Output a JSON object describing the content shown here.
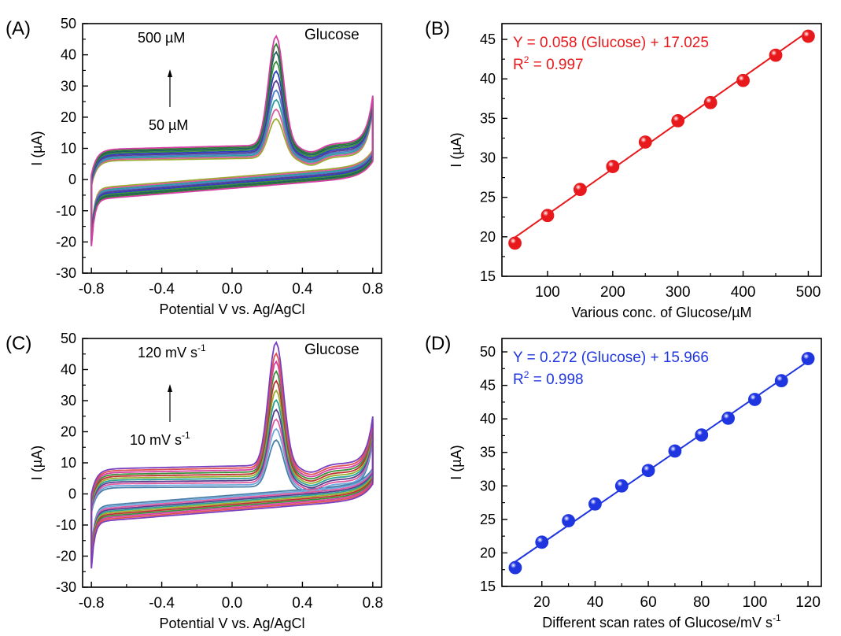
{
  "chart_data": [
    {
      "panel_label": "(A)",
      "type": "line",
      "xlabel": "Potential V vs. Ag/AgCl",
      "ylabel": "I (µA)",
      "xlim": [
        -0.85,
        0.85
      ],
      "ylim": [
        -30,
        50
      ],
      "xticks": [
        "-0.8",
        "-0.4",
        "0.0",
        "0.4",
        "0.8"
      ],
      "xtick_values": [
        -0.8,
        -0.4,
        0.0,
        0.4,
        0.8
      ],
      "yticks": [
        "-30",
        "-20",
        "-10",
        "0",
        "10",
        "20",
        "30",
        "40",
        "50"
      ],
      "ytick_values": [
        -30,
        -20,
        -10,
        0,
        10,
        20,
        30,
        40,
        50
      ],
      "annotations": {
        "top": "500 µM",
        "bottom": "50 µM",
        "label": "Glucose"
      },
      "series": [
        {
          "color": "#9aae2e",
          "peak": 19.5,
          "upper": 6.0,
          "lower": -2.8
        },
        {
          "color": "#e05aa0",
          "peak": 22.5,
          "upper": 6.4,
          "lower": -3.2
        },
        {
          "color": "#2aa198",
          "peak": 25.5,
          "upper": 6.8,
          "lower": -3.6
        },
        {
          "color": "#4a7fc9",
          "peak": 28.5,
          "upper": 7.2,
          "lower": -4.0
        },
        {
          "color": "#5a3d8f",
          "peak": 31.5,
          "upper": 7.6,
          "lower": -4.4
        },
        {
          "color": "#2f3fbf",
          "peak": 34.5,
          "upper": 8.0,
          "lower": -4.8
        },
        {
          "color": "#3a8f3a",
          "peak": 37.5,
          "upper": 8.4,
          "lower": -5.2
        },
        {
          "color": "#1f5f5f",
          "peak": 40.5,
          "upper": 8.8,
          "lower": -5.6
        },
        {
          "color": "#2e7d32",
          "peak": 43.0,
          "upper": 9.2,
          "lower": -6.0
        },
        {
          "color": "#d63fa6",
          "peak": 45.5,
          "upper": 9.6,
          "lower": -6.4
        }
      ]
    },
    {
      "panel_label": "(B)",
      "type": "scatter",
      "xlabel": "Various conc. of Glucose/µM",
      "ylabel": "I (µA)",
      "xlim": [
        30,
        520
      ],
      "ylim": [
        15,
        47
      ],
      "xticks": [
        "100",
        "200",
        "300",
        "400",
        "500"
      ],
      "xtick_values": [
        100,
        200,
        300,
        400,
        500
      ],
      "yticks": [
        "15",
        "20",
        "25",
        "30",
        "35",
        "40",
        "45"
      ],
      "ytick_values": [
        15,
        20,
        25,
        30,
        35,
        40,
        45
      ],
      "equation": "Y = 0.058 (Glucose) + 17.025",
      "r2_label": "R",
      "r2_sup": "2",
      "r2_value": " = 0.997",
      "color": "#e8191c",
      "x": [
        50,
        100,
        150,
        200,
        250,
        300,
        350,
        400,
        450,
        500
      ],
      "y": [
        19.2,
        22.7,
        26.0,
        28.9,
        32.0,
        34.7,
        37.0,
        39.8,
        43.0,
        45.4
      ],
      "fit": {
        "slope": 0.058,
        "intercept": 17.025
      }
    },
    {
      "panel_label": "(C)",
      "type": "line",
      "xlabel": "Potential V vs. Ag/AgCl",
      "ylabel": "I (µA)",
      "xlim": [
        -0.85,
        0.85
      ],
      "ylim": [
        -30,
        50
      ],
      "xticks": [
        "-0.8",
        "-0.4",
        "0.0",
        "0.4",
        "0.8"
      ],
      "xtick_values": [
        -0.8,
        -0.4,
        0.0,
        0.4,
        0.8
      ],
      "yticks": [
        "-30",
        "-20",
        "-10",
        "0",
        "10",
        "20",
        "30",
        "40",
        "50"
      ],
      "ytick_values": [
        -30,
        -20,
        -10,
        0,
        10,
        20,
        30,
        40,
        50
      ],
      "annotations": {
        "top": "120 mV s",
        "top_sup": "-1",
        "bottom": "10 mV s",
        "bottom_sup": "-1",
        "label": "Glucose"
      },
      "series": [
        {
          "color": "#4a7fa8",
          "peak": 18.0,
          "upper": 2.0,
          "lower": -4.0
        },
        {
          "color": "#6fa8dc",
          "peak": 21.5,
          "upper": 2.6,
          "lower": -4.5
        },
        {
          "color": "#e05aa0",
          "peak": 24.5,
          "upper": 3.2,
          "lower": -5.0
        },
        {
          "color": "#5a3d8f",
          "peak": 27.5,
          "upper": 3.8,
          "lower": -5.5
        },
        {
          "color": "#2aa198",
          "peak": 30.5,
          "upper": 4.4,
          "lower": -6.0
        },
        {
          "color": "#9aae2e",
          "peak": 33.5,
          "upper": 5.0,
          "lower": -6.5
        },
        {
          "color": "#c03030",
          "peak": 36.5,
          "upper": 5.6,
          "lower": -7.0
        },
        {
          "color": "#3a8f3a",
          "peak": 39.5,
          "upper": 6.2,
          "lower": -7.5
        },
        {
          "color": "#d63fa6",
          "peak": 42.5,
          "upper": 6.8,
          "lower": -8.0
        },
        {
          "color": "#e05050",
          "peak": 45.0,
          "upper": 7.4,
          "lower": -8.5
        },
        {
          "color": "#7a3fbf",
          "peak": 48.5,
          "upper": 8.0,
          "lower": -9.0
        }
      ]
    },
    {
      "panel_label": "(D)",
      "type": "scatter",
      "xlabel": "Different scan rates of Glucose/mV s",
      "xlabel_sup": "-1",
      "ylabel": "I (µA)",
      "xlim": [
        5,
        125
      ],
      "ylim": [
        15,
        52
      ],
      "xticks": [
        "20",
        "40",
        "60",
        "80",
        "100",
        "120"
      ],
      "xtick_values": [
        20,
        40,
        60,
        80,
        100,
        120
      ],
      "yticks": [
        "15",
        "20",
        "25",
        "30",
        "35",
        "40",
        "45",
        "50"
      ],
      "ytick_values": [
        15,
        20,
        25,
        30,
        35,
        40,
        45,
        50
      ],
      "equation": "Y = 0.272 (Glucose) + 15.966",
      "r2_label": "R",
      "r2_sup": "2",
      "r2_value": " = 0.998",
      "color": "#1f35e0",
      "x": [
        10,
        20,
        30,
        40,
        50,
        60,
        70,
        80,
        90,
        100,
        110,
        120
      ],
      "y": [
        17.8,
        21.6,
        24.8,
        27.3,
        30.0,
        32.3,
        35.2,
        37.6,
        40.1,
        42.9,
        45.7,
        49.0
      ],
      "fit": {
        "slope": 0.272,
        "intercept": 15.966
      }
    }
  ]
}
